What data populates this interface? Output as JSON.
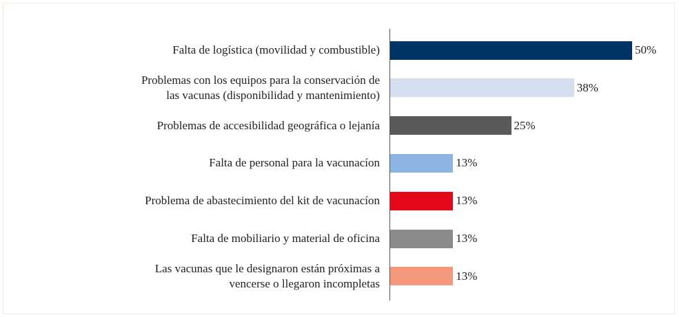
{
  "chart_data": {
    "type": "bar",
    "orientation": "horizontal",
    "categories": [
      "Falta de logística (movilidad y combustible)",
      "Problemas con los equipos para la conservación de\nlas vacunas (disponibilidad y mantenimiento)",
      "Problemas de accesibilidad geográfica o lejanía",
      "Falta de personal para la vacunacíon",
      "Problema de abastecimiento del kit de vacunacíon",
      "Falta de mobiliario y material de oficina",
      "Las vacunas que le designaron están próximas a\nvencerse o llegaron incompletas"
    ],
    "values": [
      50,
      38,
      25,
      13,
      13,
      13,
      13
    ],
    "value_labels": [
      "50%",
      "38%",
      "25%",
      "13%",
      "13%",
      "13%",
      "13%"
    ],
    "colors": [
      "#003366",
      "#d6dff0",
      "#595959",
      "#8db4e2",
      "#e3091a",
      "#8c8c8c",
      "#f4977a"
    ]
  }
}
